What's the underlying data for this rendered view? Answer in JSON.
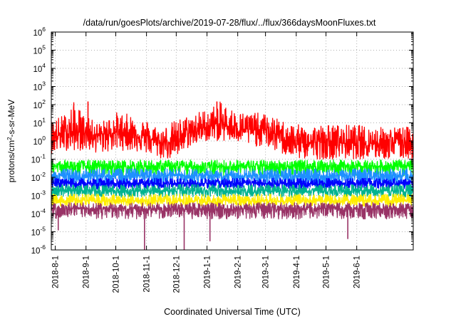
{
  "chart_data": {
    "type": "line",
    "title": "/data/run/goesPlots/archive/2019-07-28/flux/../flux/366daysMoonFluxes.txt",
    "xlabel": "Coordinated Universal Time (UTC)",
    "ylabel": {
      "base": "protons/cm",
      "sup": "2",
      "rest": "-s-sr-MeV"
    },
    "yscale": "log",
    "ylim": [
      1e-06,
      1000000.0
    ],
    "xlim": [
      "2018-07-28",
      "2019-07-28"
    ],
    "grid": true,
    "legend": "none",
    "x_ticks": [
      "2018-8-1",
      "2018-9-1",
      "2018-10-1",
      "2018-11-1",
      "2018-12-1",
      "2019-1-1",
      "2019-2-1",
      "2019-3-1",
      "2019-4-1",
      "2019-5-1",
      "2019-6-1"
    ],
    "y_ticks": [
      {
        "exp": "-6",
        "value": 1e-06
      },
      {
        "exp": "-5",
        "value": 1e-05
      },
      {
        "exp": "-4",
        "value": 0.0001
      },
      {
        "exp": "-3",
        "value": 0.001
      },
      {
        "exp": "-2",
        "value": 0.01
      },
      {
        "exp": "-1",
        "value": 0.1
      },
      {
        "exp": "0",
        "value": 1
      },
      {
        "exp": "1",
        "value": 10
      },
      {
        "exp": "2",
        "value": 100
      },
      {
        "exp": "3",
        "value": 1000
      },
      {
        "exp": "4",
        "value": 10000
      },
      {
        "exp": "5",
        "value": 100000
      },
      {
        "exp": "6",
        "value": 1000000
      }
    ],
    "series": [
      {
        "color": "#ff0000",
        "x": [
          "2018-07-28",
          "2018-08-10",
          "2018-08-20",
          "2018-09-01",
          "2018-09-15",
          "2018-10-01",
          "2018-10-15",
          "2018-11-01",
          "2018-11-15",
          "2018-12-01",
          "2018-12-15",
          "2019-01-01",
          "2019-01-15",
          "2019-02-01",
          "2019-02-15",
          "2019-03-01",
          "2019-03-15",
          "2019-04-01",
          "2019-04-15",
          "2019-05-01",
          "2019-05-15",
          "2019-06-01",
          "2019-06-15",
          "2019-07-01",
          "2019-07-15",
          "2019-07-28"
        ],
        "y": [
          1.5,
          2.5,
          3,
          3,
          2,
          3,
          3,
          1.5,
          0.8,
          1,
          3,
          6,
          8,
          5,
          4,
          4,
          2,
          0.8,
          0.8,
          1,
          0.8,
          0.8,
          0.8,
          0.8,
          0.9,
          1
        ],
        "y_low": [
          0.2,
          0.3,
          0.3,
          0.3,
          0.2,
          0.3,
          0.3,
          0.2,
          0.1,
          0.1,
          0.5,
          1,
          1,
          0.8,
          0.5,
          0.5,
          0.2,
          0.1,
          0.1,
          0.1,
          0.1,
          0.1,
          0.1,
          0.1,
          0.1,
          0.1
        ],
        "y_high": [
          15,
          30,
          150,
          20,
          10,
          40,
          30,
          15,
          5,
          15,
          30,
          60,
          150,
          40,
          40,
          30,
          15,
          8,
          8,
          8,
          8,
          8,
          6,
          6,
          6,
          6
        ]
      },
      {
        "color": "#00ff00",
        "x": [
          "2018-07-28",
          "2019-07-28"
        ],
        "y": [
          0.04,
          0.04
        ],
        "y_low": [
          0.012,
          0.012
        ],
        "y_high": [
          0.09,
          0.09
        ]
      },
      {
        "color": "#1e90ff",
        "x": [
          "2018-07-28",
          "2019-07-28"
        ],
        "y": [
          0.012,
          0.012
        ],
        "y_low": [
          0.003,
          0.003
        ],
        "y_high": [
          0.03,
          0.03
        ]
      },
      {
        "color": "#0000ff",
        "x": [
          "2018-07-28",
          "2019-07-28"
        ],
        "y": [
          0.0045,
          0.0045
        ],
        "y_low": [
          0.0022,
          0.0022
        ],
        "y_high": [
          0.009,
          0.009
        ]
      },
      {
        "color": "#00b38f",
        "x": [
          "2018-07-28",
          "2019-07-28"
        ],
        "y": [
          0.0018,
          0.0018
        ],
        "y_low": [
          0.0008,
          0.0008
        ],
        "y_high": [
          0.004,
          0.004
        ]
      },
      {
        "color": "#ffee00",
        "x": [
          "2018-07-28",
          "2019-07-28"
        ],
        "y": [
          0.0005,
          0.0005
        ],
        "y_low": [
          0.00025,
          0.00025
        ],
        "y_high": [
          0.0012,
          0.0012
        ]
      },
      {
        "color": "#993366",
        "x": [
          "2018-07-28",
          "2019-07-28"
        ],
        "y": [
          0.00018,
          0.00018
        ],
        "y_low": [
          5e-05,
          5e-05
        ],
        "y_high": [
          0.0004,
          0.0004
        ]
      }
    ],
    "dips": [
      {
        "series": 6,
        "x": "2018-08-04",
        "y": 1.2e-05
      },
      {
        "series": 6,
        "x": "2018-10-30",
        "y": 1e-06
      },
      {
        "series": 6,
        "x": "2018-12-09",
        "y": 1e-06
      },
      {
        "series": 6,
        "x": "2019-01-04",
        "y": 3e-06
      },
      {
        "series": 6,
        "x": "2019-05-23",
        "y": 4e-06
      },
      {
        "series": 0,
        "x": "2018-09-03",
        "y": 150
      },
      {
        "series": 0,
        "x": "2019-01-11",
        "y": 150
      }
    ]
  }
}
